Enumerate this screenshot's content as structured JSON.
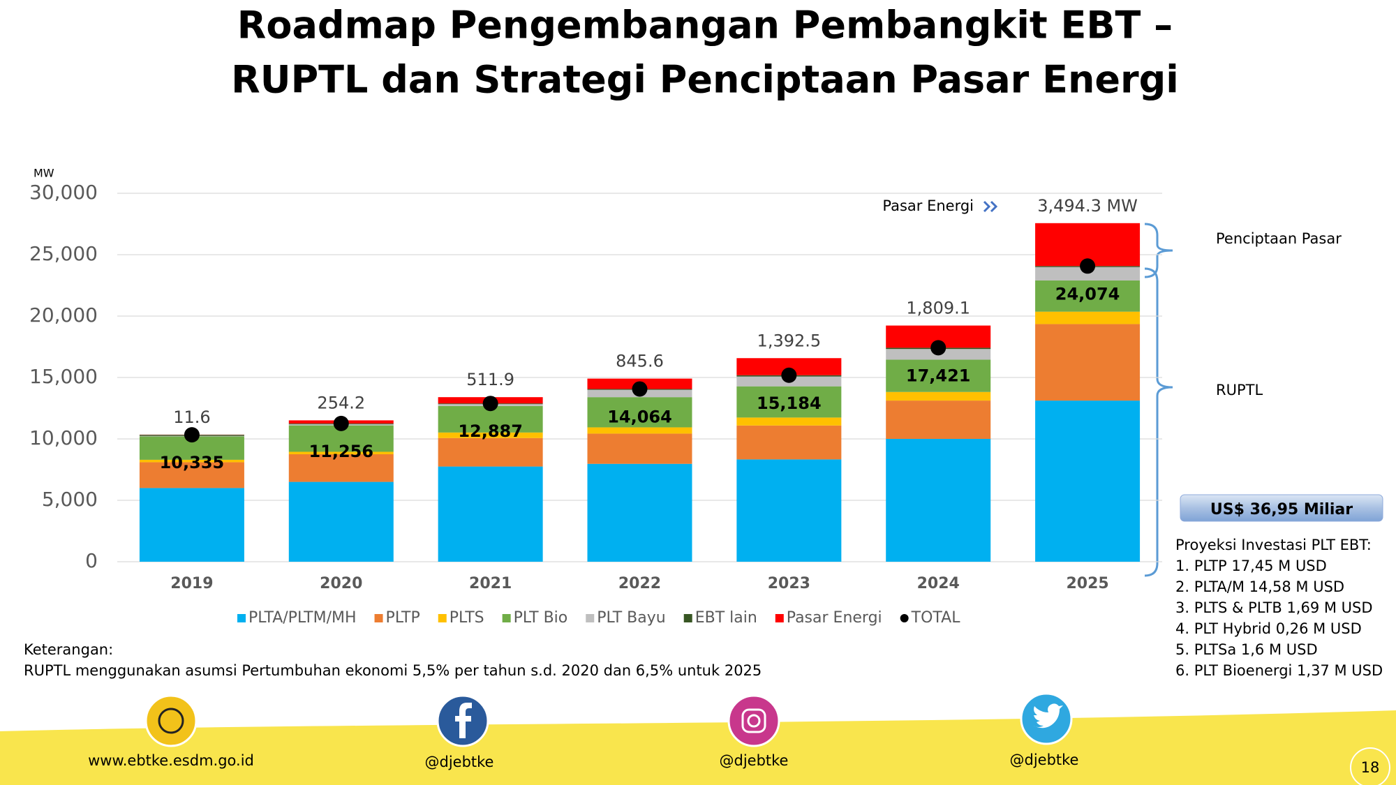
{
  "title": [
    "Roadmap Pengembangan Pembangkit EBT –",
    "RUPTL dan Strategi Penciptaan Pasar Energi"
  ],
  "chart_data": {
    "type": "bar",
    "stacked": true,
    "y_unit": "MW",
    "annotation": "Pasar Energi",
    "categories": [
      "2019",
      "2020",
      "2021",
      "2022",
      "2023",
      "2024",
      "2025"
    ],
    "series": [
      {
        "name": "PLTA/PLTM/MH",
        "color": "#00b0f0",
        "values": [
          6000,
          6500,
          7750,
          7970,
          8330,
          10000,
          13120
        ]
      },
      {
        "name": "PLTP",
        "color": "#ed7d31",
        "values": [
          2100,
          2250,
          2320,
          2460,
          2760,
          3120,
          6230
        ]
      },
      {
        "name": "PLTS",
        "color": "#ffc000",
        "values": [
          200,
          200,
          450,
          510,
          650,
          700,
          1010
        ]
      },
      {
        "name": "PLT Bio",
        "color": "#70ad47",
        "values": [
          1900,
          2150,
          2160,
          2460,
          2540,
          2630,
          2540
        ]
      },
      {
        "name": "PLT Bayu",
        "color": "#bfbfbf",
        "values": [
          50,
          100,
          150,
          600,
          800,
          870,
          1090
        ]
      },
      {
        "name": "EBT lain",
        "color": "#375623",
        "values": [
          85,
          56,
          57,
          64,
          104,
          101,
          84
        ]
      },
      {
        "name": "Pasar Energi",
        "color": "#ff0000",
        "values": [
          11.6,
          254.2,
          511.9,
          845.6,
          1392.5,
          1809.1,
          3494.3
        ],
        "value_labels": [
          "11.6",
          "254.2",
          "511.9",
          "845.6",
          "1,392.5",
          "1,809.1",
          "3,494.3 MW"
        ]
      }
    ],
    "total": {
      "name": "TOTAL",
      "color": "#000000",
      "values": [
        10335,
        11256,
        12887,
        14064,
        15184,
        17421,
        24074
      ],
      "value_labels": [
        "10,335",
        "11,256",
        "12,887",
        "14,064",
        "15,184",
        "17,421",
        "24,074"
      ]
    },
    "ylim": [
      0,
      30000
    ],
    "yticks": [
      0,
      {
        "value": 5000,
        "label": "5,000"
      },
      {
        "value": 10000,
        "label": "10,000"
      },
      {
        "value": 15000,
        "label": "15,000"
      },
      {
        "value": 20000,
        "label": "20,000"
      },
      {
        "value": 25000,
        "label": "25,000"
      },
      {
        "value": 30000,
        "label": "30,000"
      }
    ],
    "grid": true
  },
  "brackets": {
    "market": "Penciptaan Pasar",
    "ruptl": "RUPTL"
  },
  "investment": {
    "total": "US$ 36,95 Miliar",
    "heading": "Proyeksi Investasi PLT EBT:",
    "items": [
      "1.  PLTP 17,45 M USD",
      "2.  PLTA/M 14,58 M USD",
      "3.  PLTS & PLTB 1,69 M USD",
      "4.  PLT Hybrid 0,26 M USD",
      "5.  PLTSa 1,6 M USD",
      "6.  PLT Bioenergi 1,37 M USD"
    ]
  },
  "notes": {
    "heading": "Keterangan:",
    "text": "RUPTL menggunakan asumsi Pertumbuhan ekonomi 5,5% per tahun s.d. 2020 dan 6,5% untuk 2025"
  },
  "footer": {
    "website": "www.ebtke.esdm.go.id",
    "facebook": "@djebtke",
    "instagram": "@djebtke",
    "twitter": "@djebtke",
    "page": "18"
  }
}
